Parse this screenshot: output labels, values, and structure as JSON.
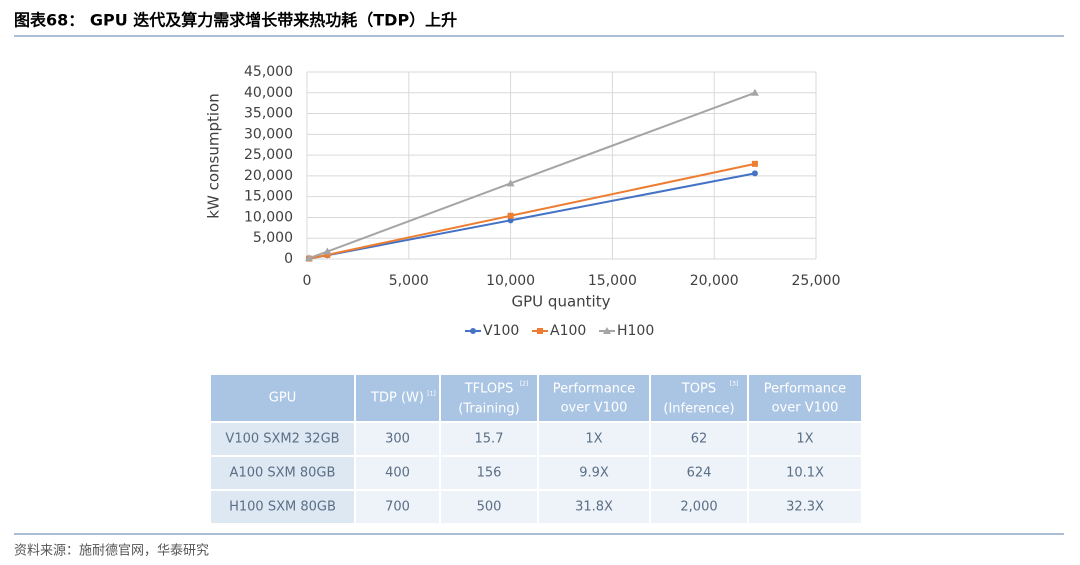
{
  "header": {
    "title": "图表68： GPU 迭代及算力需求增长带来热功耗（TDP）上升"
  },
  "chart_data": {
    "type": "line",
    "x_label": "GPU quantity",
    "y_label": "kW consumption",
    "x": [
      100,
      1000,
      10000,
      22000
    ],
    "series": [
      {
        "name": "V100",
        "color": "#4472c4",
        "marker": "circle",
        "values": [
          100,
          900,
          9300,
          20600
        ]
      },
      {
        "name": "A100",
        "color": "#ed7d31",
        "marker": "square",
        "values": [
          100,
          1000,
          10400,
          22900
        ]
      },
      {
        "name": "H100",
        "color": "#a5a5a5",
        "marker": "triangle",
        "values": [
          200,
          1800,
          18200,
          40000
        ]
      }
    ],
    "xlim": [
      0,
      25000
    ],
    "xticks": [
      0,
      {
        "value": 5000,
        "label": "5,000"
      },
      {
        "value": 10000,
        "label": "10,000"
      },
      {
        "value": 15000,
        "label": "15,000"
      },
      {
        "value": 20000,
        "label": "20,000"
      },
      {
        "value": 25000,
        "label": "25,000"
      }
    ],
    "ylim": [
      0,
      45000
    ],
    "yticks": [
      0,
      {
        "value": 5000,
        "label": "5,000"
      },
      {
        "value": 10000,
        "label": "10,000"
      },
      {
        "value": 15000,
        "label": "15,000"
      },
      {
        "value": 20000,
        "label": "20,000"
      },
      {
        "value": 25000,
        "label": "25,000"
      },
      {
        "value": 30000,
        "label": "30,000"
      },
      {
        "value": 35000,
        "label": "35,000"
      },
      {
        "value": 40000,
        "label": "40,000"
      },
      {
        "value": 45000,
        "label": "45,000"
      }
    ],
    "grid": true,
    "legend": "bottom"
  },
  "table": {
    "header": [
      {
        "text": "GPU"
      },
      {
        "text": "TDP (W)",
        "note": "[1]"
      },
      {
        "text": "TFLOPS (Training)",
        "note": "[2]"
      },
      {
        "text": "Performance over V100"
      },
      {
        "text": "TOPS (Inference)",
        "note": "[3]"
      },
      {
        "text": "Performance over V100"
      }
    ],
    "rows": [
      [
        "V100 SXM2 32GB",
        "300",
        "15.7",
        "1X",
        "62",
        "1X"
      ],
      [
        "A100 SXM 80GB",
        "400",
        "156",
        "9.9X",
        "624",
        "10.1X"
      ],
      [
        "H100 SXM 80GB",
        "700",
        "500",
        "31.8X",
        "2,000",
        "32.3X"
      ]
    ]
  },
  "footer": {
    "source": "资料来源：施耐德官网，华泰研究"
  }
}
